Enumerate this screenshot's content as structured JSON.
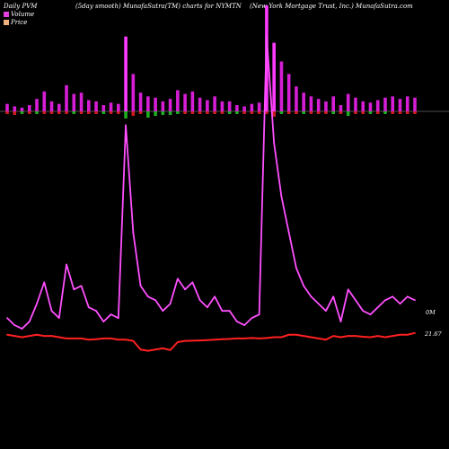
{
  "header": {
    "left": "Daily PVM",
    "smooth": "(5day smooth) MunafaSutra(TM) charts for NYMTN",
    "company": "(New York Mortgage   Trust, Inc.) MunafaSutra.com"
  },
  "legend": [
    {
      "label": "Volume",
      "color": "#e040e0"
    },
    {
      "label": "Price",
      "color": "#f0b080"
    }
  ],
  "labels": {
    "volume_last": "0M",
    "price_last": "21.67"
  },
  "colors": {
    "volume_up": "#d51ed5",
    "volume_spike": "#ff3aff",
    "flow_up": "#20c020",
    "flow_down": "#e02020",
    "volume_line": "#ff50ff",
    "price_line": "#ff2020"
  },
  "chart_data": {
    "type": "bar",
    "series": [
      {
        "name": "Volume",
        "values": [
          6,
          4,
          3,
          5,
          10,
          16,
          8,
          6,
          21,
          14,
          15,
          9,
          8,
          5,
          7,
          6,
          60,
          30,
          15,
          12,
          11,
          8,
          10,
          17,
          14,
          16,
          11,
          9,
          12,
          8,
          8,
          5,
          4,
          6,
          7,
          85,
          55,
          40,
          30,
          20,
          15,
          12,
          10,
          8,
          12,
          5,
          14,
          11,
          8,
          7,
          9,
          11,
          12,
          10,
          12,
          11
        ]
      },
      {
        "name": "Price",
        "values": [
          21.6,
          21.55,
          21.5,
          21.55,
          21.6,
          21.55,
          21.55,
          21.5,
          21.45,
          21.45,
          21.45,
          21.4,
          21.42,
          21.45,
          21.45,
          21.4,
          21.4,
          21.35,
          21.0,
          20.95,
          21.0,
          21.05,
          20.98,
          21.3,
          21.35,
          21.36,
          21.37,
          21.38,
          21.4,
          21.42,
          21.43,
          21.45,
          21.45,
          21.47,
          21.45,
          21.47,
          21.5,
          21.5,
          21.6,
          21.6,
          21.55,
          21.5,
          21.45,
          21.4,
          21.55,
          21.5,
          21.55,
          21.55,
          21.52,
          21.5,
          21.55,
          21.5,
          21.55,
          21.6,
          21.6,
          21.67
        ]
      },
      {
        "name": "Flow",
        "values": [
          -3,
          -4,
          -3,
          -3,
          -3,
          -3,
          -3,
          -3,
          -3,
          -3,
          -3,
          -3,
          -3,
          -3,
          -3,
          -3,
          -8,
          -5,
          -3,
          -7,
          -5,
          -4,
          -4,
          -3,
          -3,
          -3,
          -3,
          -3,
          -3,
          -3,
          -3,
          -3,
          -3,
          -3,
          -3,
          -3,
          -6,
          -3,
          -3,
          -3,
          -3,
          -3,
          -3,
          -3,
          -3,
          -3,
          -5,
          -3,
          -3,
          -3,
          -3,
          -3,
          -3,
          -3,
          -3,
          -3
        ]
      }
    ]
  }
}
